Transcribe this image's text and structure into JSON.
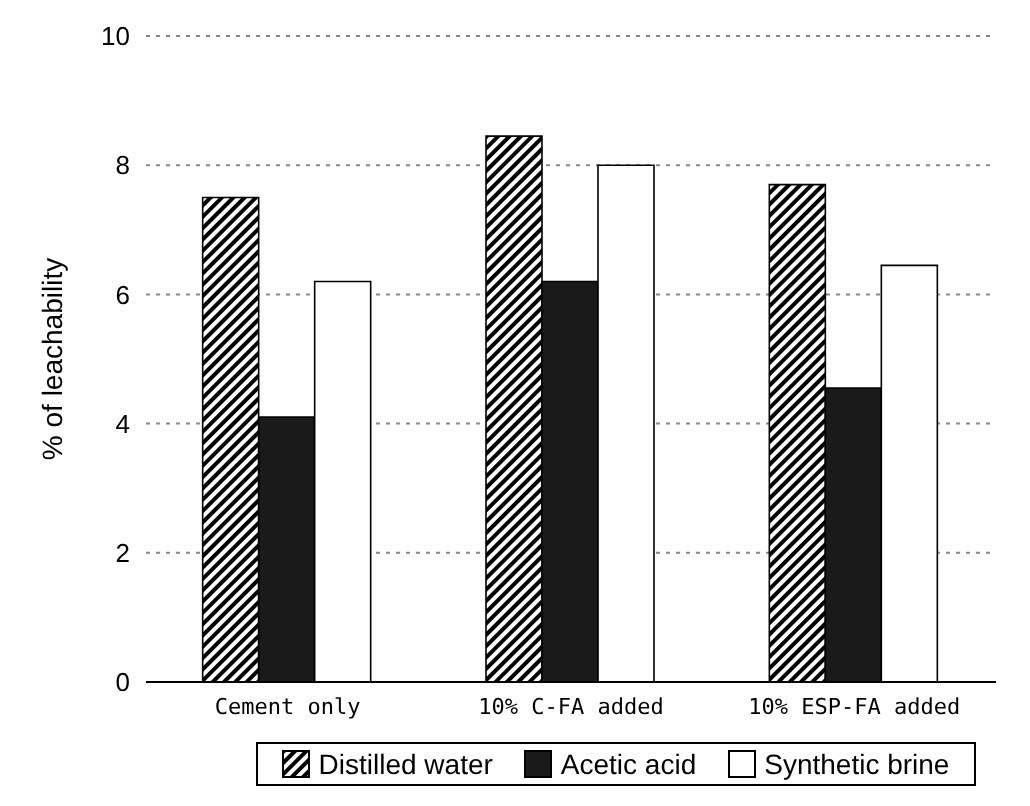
{
  "chart_data": {
    "type": "bar",
    "ylabel": "% of leachability",
    "categories": [
      "Cement only",
      "10% C-FA added",
      "10% ESP-FA added"
    ],
    "series": [
      {
        "name": "Distilled water",
        "color": "#000000",
        "values": [
          7.5,
          8.45,
          7.7
        ]
      },
      {
        "name": "Acetic acid",
        "color": "#1a1a1a",
        "values": [
          4.1,
          6.2,
          4.55
        ]
      },
      {
        "name": "Synthetic brine",
        "color": "#ffffff",
        "values": [
          6.2,
          8.0,
          6.45
        ]
      }
    ],
    "ylim": [
      0,
      10
    ],
    "yticks": [
      0,
      2,
      4,
      6,
      8,
      10
    ],
    "grid": "y",
    "legend": "bottom"
  }
}
